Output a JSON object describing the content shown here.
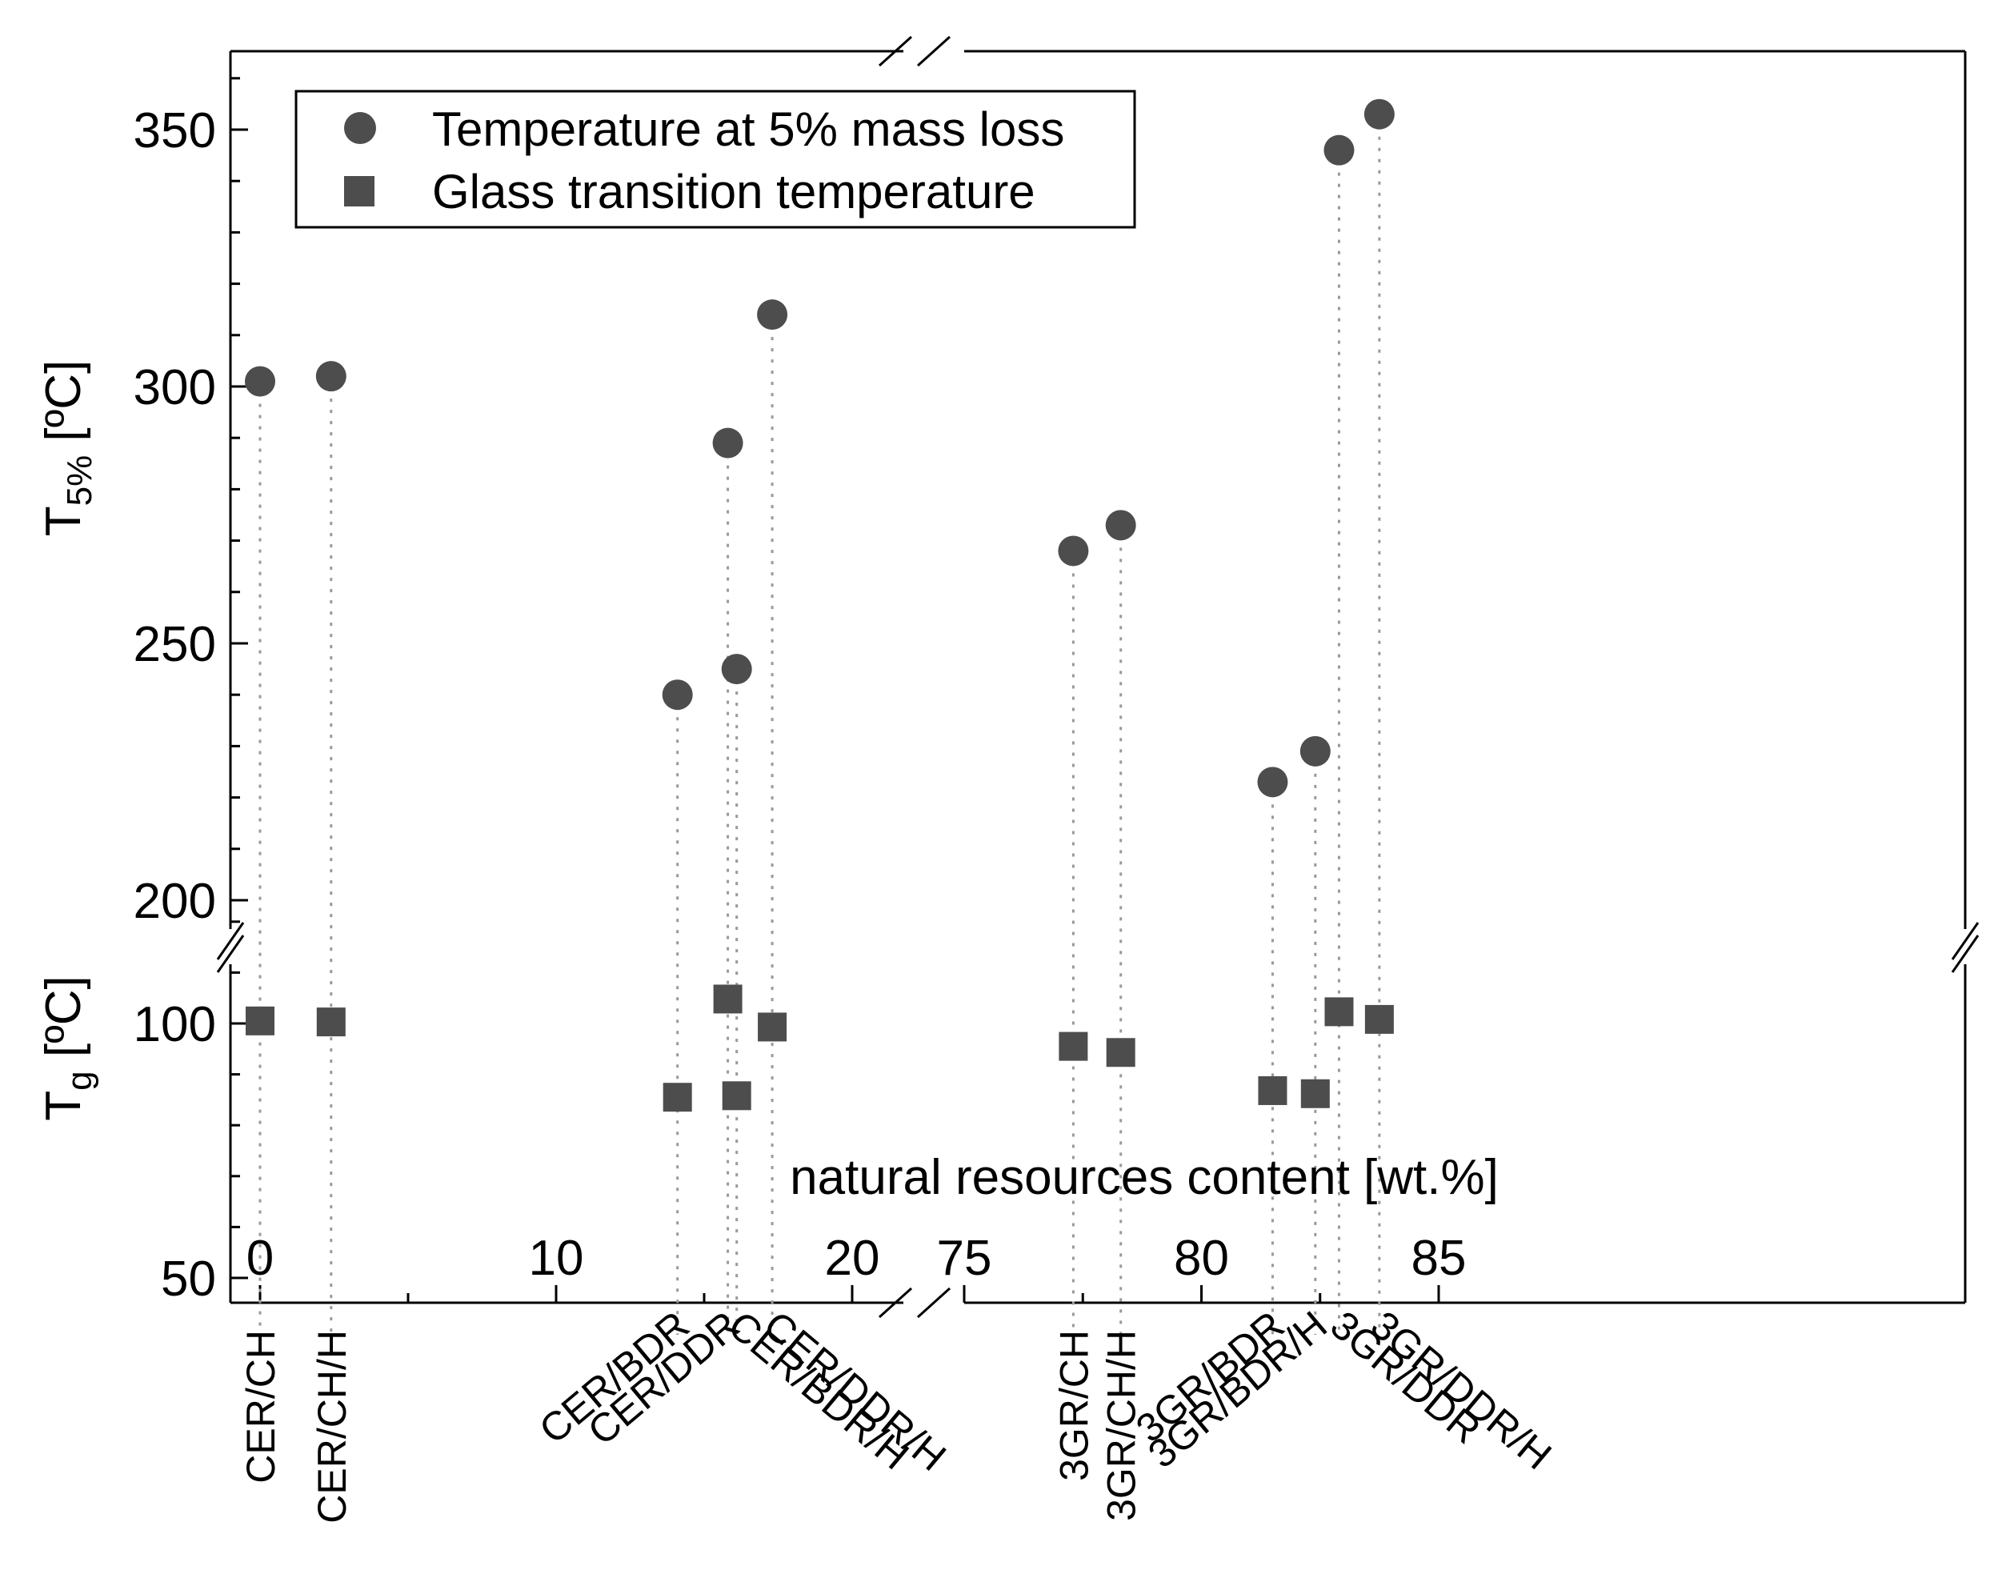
{
  "chart_data": {
    "type": "scatter",
    "title": "",
    "xlabel": "natural resources content [wt.%]",
    "x_axis": {
      "break": true,
      "segments": [
        {
          "range": [
            0,
            20
          ],
          "major_ticks": [
            0,
            10,
            20
          ],
          "tick_labels": [
            "0",
            "10",
            "20"
          ]
        },
        {
          "range": [
            75,
            85
          ],
          "major_ticks": [
            75,
            80,
            85
          ],
          "tick_labels": [
            "75",
            "80",
            "85"
          ]
        }
      ]
    },
    "y_axes": [
      {
        "id": "upper",
        "label_main": "T",
        "label_sub": "5%",
        "label_unit": " [ºC]",
        "range": [
          200,
          365
        ],
        "major_ticks": [
          200,
          250,
          300,
          350
        ],
        "tick_labels": [
          "200",
          "250",
          "300",
          "350"
        ]
      },
      {
        "id": "lower",
        "label_main": "T",
        "label_sub": "g",
        "label_unit": " [ºC]",
        "range": [
          50,
          125
        ],
        "major_ticks": [
          50,
          100
        ],
        "tick_labels": [
          "50",
          "100"
        ]
      }
    ],
    "legend": {
      "position": "top-left"
    },
    "series": [
      {
        "name": "Temperature at 5% mass loss",
        "marker": "circle",
        "axis": "upper",
        "color": "#4d4d4d"
      },
      {
        "name": "Glass transition temperature",
        "marker": "square",
        "axis": "lower",
        "color": "#4d4d4d"
      }
    ],
    "samples": [
      {
        "label": "CER/CH",
        "x": 0.0,
        "t5": 301,
        "tg": 100.5
      },
      {
        "label": "CER/CH/H",
        "x": 2.4,
        "t5": 302,
        "tg": 100.3
      },
      {
        "label": "CER/BDR",
        "x": 14.1,
        "t5": 240,
        "tg": 85.5
      },
      {
        "label": "CER/DDR",
        "x": 15.8,
        "t5": 289,
        "tg": 104.8
      },
      {
        "label": "CER/BDR/H",
        "x": 16.1,
        "t5": 245,
        "tg": 85.8
      },
      {
        "label": "CER/DDR/H",
        "x": 17.3,
        "t5": 314,
        "tg": 99.3
      },
      {
        "label": "3GR/CH",
        "x": 77.3,
        "t5": 268,
        "tg": 95.5
      },
      {
        "label": "3GR/CH/H",
        "x": 78.3,
        "t5": 273,
        "tg": 94.3
      },
      {
        "label": "3GR/BDR",
        "x": 81.5,
        "t5": 223,
        "tg": 86.8
      },
      {
        "label": "3GR/BDR/H",
        "x": 82.4,
        "t5": 229,
        "tg": 86.2
      },
      {
        "label": "3GR/DDR",
        "x": 82.9,
        "t5": 346,
        "tg": 102.3
      },
      {
        "label": "3GR/DDR/H",
        "x": 83.75,
        "t5": 353,
        "tg": 100.8
      }
    ],
    "grid": false
  }
}
